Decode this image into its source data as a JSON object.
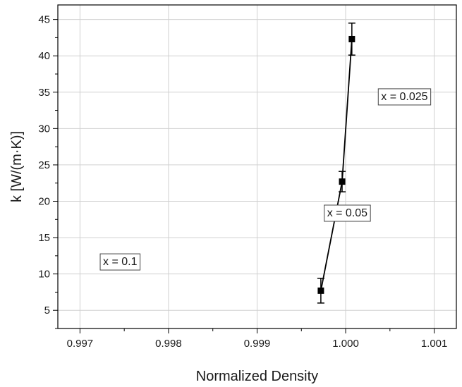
{
  "chart_data": {
    "type": "scatter",
    "xlabel": "Normalized Density",
    "ylabel": "k [W/(m·K)]",
    "xlim": [
      0.99675,
      1.00125
    ],
    "ylim": [
      2.5,
      47
    ],
    "x_ticks": [
      0.997,
      0.998,
      0.999,
      1.0,
      1.001
    ],
    "x_tick_labels": [
      "0.997",
      "0.998",
      "0.999",
      "1.000",
      "1.001"
    ],
    "y_ticks": [
      5,
      10,
      15,
      20,
      25,
      30,
      35,
      40,
      45
    ],
    "y_tick_labels": [
      "5",
      "10",
      "15",
      "20",
      "25",
      "30",
      "35",
      "40",
      "45"
    ],
    "grid": true,
    "series": [
      {
        "marker": "square",
        "line": true,
        "color": "#000000",
        "x": [
          0.99972,
          0.99996,
          1.00007
        ],
        "y": [
          7.7,
          22.7,
          42.3
        ],
        "error": [
          1.7,
          1.4,
          2.2
        ]
      }
    ],
    "annotations": [
      {
        "text": "x = 0.1",
        "x": 0.99726,
        "y": 11.8
      },
      {
        "text": "x = 0.05",
        "x": 0.99979,
        "y": 18.5
      },
      {
        "text": "x = 0.025",
        "x": 1.0004,
        "y": 34.5
      }
    ]
  }
}
